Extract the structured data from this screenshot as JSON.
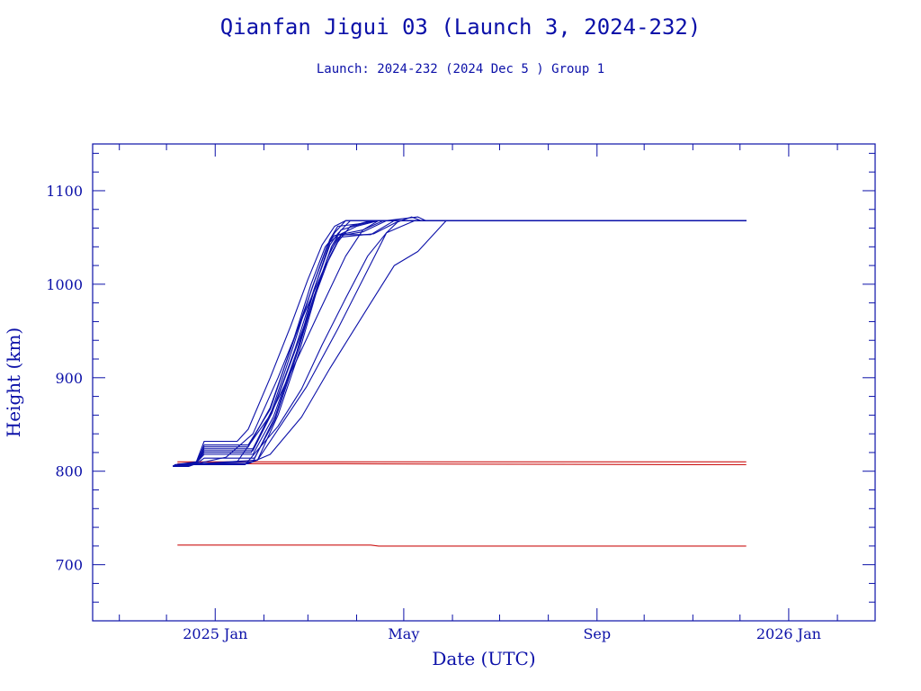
{
  "chart_data": {
    "type": "line",
    "title": "Qianfan Jigui 03 (Launch 3, 2024-232)",
    "subtitle": "Launch: 2024-232  (2024 Dec  5 )  Group 1",
    "xlabel": "Date (UTC)",
    "ylabel": "Height (km)",
    "xlim": [
      "2024-10-15",
      "2026-02-25"
    ],
    "ylim": [
      640,
      1150
    ],
    "y_ticks": [
      700,
      800,
      900,
      1000,
      1100
    ],
    "x_ticks": [
      {
        "date": "2025-01-01",
        "label": "2025 Jan"
      },
      {
        "date": "2025-05-01",
        "label": "May"
      },
      {
        "date": "2025-09-01",
        "label": "Sep"
      },
      {
        "date": "2026-01-01",
        "label": "2026 Jan"
      }
    ],
    "grid": false,
    "legend": "none",
    "colors": {
      "axis": "#0b10a8",
      "raising": "#0b10a8",
      "stable": "#cc1414"
    },
    "series": [
      {
        "color": "#cc1414",
        "points": [
          [
            "2024-12-08",
            721
          ],
          [
            "2025-04-10",
            721
          ],
          [
            "2025-04-15",
            720
          ],
          [
            "2025-12-05",
            720
          ]
        ]
      },
      {
        "color": "#cc1414",
        "points": [
          [
            "2024-12-08",
            810
          ],
          [
            "2025-04-01",
            810
          ],
          [
            "2025-12-05",
            810
          ]
        ]
      },
      {
        "color": "#cc1414",
        "points": [
          [
            "2024-12-08",
            808
          ],
          [
            "2025-03-10",
            808
          ],
          [
            "2025-11-20",
            807
          ],
          [
            "2025-12-05",
            807
          ]
        ]
      },
      {
        "color": "#0b10a8",
        "points": [
          [
            "2024-12-05",
            806
          ],
          [
            "2024-12-15",
            806
          ],
          [
            "2024-12-20",
            808
          ],
          [
            "2025-01-20",
            808
          ],
          [
            "2025-01-28",
            812
          ],
          [
            "2025-02-28",
            890
          ],
          [
            "2025-03-20",
            952
          ],
          [
            "2025-04-20",
            1055
          ],
          [
            "2025-05-08",
            1068
          ],
          [
            "2025-12-05",
            1068
          ]
        ]
      },
      {
        "color": "#0b10a8",
        "points": [
          [
            "2024-12-05",
            805
          ],
          [
            "2024-12-15",
            805
          ],
          [
            "2024-12-20",
            808
          ],
          [
            "2025-01-22",
            808
          ],
          [
            "2025-02-05",
            818
          ],
          [
            "2025-02-25",
            858
          ],
          [
            "2025-03-15",
            910
          ],
          [
            "2025-04-10",
            980
          ],
          [
            "2025-04-25",
            1020
          ],
          [
            "2025-05-10",
            1035
          ],
          [
            "2025-05-28",
            1068
          ],
          [
            "2025-12-05",
            1068
          ]
        ]
      },
      {
        "color": "#0b10a8",
        "points": [
          [
            "2024-12-06",
            806
          ],
          [
            "2024-12-18",
            807
          ],
          [
            "2025-01-20",
            807
          ],
          [
            "2025-02-10",
            848
          ],
          [
            "2025-02-25",
            888
          ],
          [
            "2025-03-10",
            935
          ],
          [
            "2025-03-25",
            985
          ],
          [
            "2025-04-08",
            1030
          ],
          [
            "2025-04-20",
            1055
          ],
          [
            "2025-04-28",
            1068
          ],
          [
            "2025-12-05",
            1068
          ]
        ]
      },
      {
        "color": "#0b10a8",
        "points": [
          [
            "2024-12-06",
            807
          ],
          [
            "2024-12-18",
            807
          ],
          [
            "2025-01-15",
            810
          ],
          [
            "2025-02-05",
            860
          ],
          [
            "2025-02-20",
            912
          ],
          [
            "2025-03-08",
            970
          ],
          [
            "2025-03-25",
            1030
          ],
          [
            "2025-04-05",
            1058
          ],
          [
            "2025-04-15",
            1068
          ],
          [
            "2025-12-05",
            1068
          ]
        ]
      },
      {
        "color": "#0b10a8",
        "points": [
          [
            "2024-12-07",
            806
          ],
          [
            "2024-12-20",
            808
          ],
          [
            "2025-01-08",
            815
          ],
          [
            "2025-01-25",
            840
          ],
          [
            "2025-02-10",
            900
          ],
          [
            "2025-02-25",
            962
          ],
          [
            "2025-03-10",
            1012
          ],
          [
            "2025-03-20",
            1045
          ],
          [
            "2025-03-28",
            1062
          ],
          [
            "2025-04-10",
            1068
          ],
          [
            "2025-12-05",
            1068
          ]
        ]
      },
      {
        "color": "#0b10a8",
        "points": [
          [
            "2024-12-06",
            807
          ],
          [
            "2024-12-20",
            810
          ],
          [
            "2024-12-25",
            832
          ],
          [
            "2025-01-15",
            832
          ],
          [
            "2025-01-22",
            845
          ],
          [
            "2025-02-05",
            900
          ],
          [
            "2025-02-18",
            955
          ],
          [
            "2025-03-01",
            1005
          ],
          [
            "2025-03-10",
            1042
          ],
          [
            "2025-03-18",
            1062
          ],
          [
            "2025-03-25",
            1068
          ],
          [
            "2025-12-05",
            1068
          ]
        ]
      },
      {
        "color": "#0b10a8",
        "points": [
          [
            "2024-12-06",
            806
          ],
          [
            "2024-12-20",
            810
          ],
          [
            "2024-12-25",
            826
          ],
          [
            "2025-01-22",
            826
          ],
          [
            "2025-02-05",
            868
          ],
          [
            "2025-02-20",
            940
          ],
          [
            "2025-03-05",
            1002
          ],
          [
            "2025-03-15",
            1048
          ],
          [
            "2025-03-20",
            1062
          ],
          [
            "2025-04-05",
            1065
          ],
          [
            "2025-04-15",
            1068
          ],
          [
            "2025-12-05",
            1068
          ]
        ]
      },
      {
        "color": "#0b10a8",
        "points": [
          [
            "2024-12-06",
            806
          ],
          [
            "2024-12-20",
            809
          ],
          [
            "2024-12-25",
            822
          ],
          [
            "2025-01-25",
            822
          ],
          [
            "2025-02-06",
            862
          ],
          [
            "2025-02-20",
            925
          ],
          [
            "2025-03-05",
            985
          ],
          [
            "2025-03-15",
            1030
          ],
          [
            "2025-03-22",
            1052
          ],
          [
            "2025-04-05",
            1056
          ],
          [
            "2025-04-20",
            1068
          ],
          [
            "2025-05-10",
            1072
          ],
          [
            "2025-05-15",
            1068
          ],
          [
            "2025-12-05",
            1068
          ]
        ]
      },
      {
        "color": "#0b10a8",
        "points": [
          [
            "2024-12-06",
            806
          ],
          [
            "2024-12-20",
            809
          ],
          [
            "2024-12-25",
            818
          ],
          [
            "2025-01-25",
            818
          ],
          [
            "2025-02-07",
            858
          ],
          [
            "2025-02-22",
            928
          ],
          [
            "2025-03-05",
            988
          ],
          [
            "2025-03-15",
            1035
          ],
          [
            "2025-03-22",
            1053
          ],
          [
            "2025-04-10",
            1053
          ],
          [
            "2025-04-25",
            1068
          ],
          [
            "2025-12-05",
            1068
          ]
        ]
      },
      {
        "color": "#0b10a8",
        "points": [
          [
            "2024-12-06",
            806
          ],
          [
            "2024-12-20",
            808
          ],
          [
            "2024-12-25",
            814
          ],
          [
            "2025-01-26",
            814
          ],
          [
            "2025-02-08",
            855
          ],
          [
            "2025-02-22",
            925
          ],
          [
            "2025-03-06",
            992
          ],
          [
            "2025-03-14",
            1030
          ],
          [
            "2025-03-20",
            1050
          ],
          [
            "2025-04-12",
            1054
          ],
          [
            "2025-04-26",
            1066
          ],
          [
            "2025-05-06",
            1072
          ],
          [
            "2025-05-12",
            1068
          ],
          [
            "2025-12-05",
            1068
          ]
        ]
      },
      {
        "color": "#0b10a8",
        "points": [
          [
            "2024-12-06",
            805
          ],
          [
            "2024-12-20",
            808
          ],
          [
            "2025-01-28",
            812
          ],
          [
            "2025-02-10",
            860
          ],
          [
            "2025-02-23",
            925
          ],
          [
            "2025-03-07",
            995
          ],
          [
            "2025-03-16",
            1040
          ],
          [
            "2025-03-22",
            1058
          ],
          [
            "2025-03-30",
            1062
          ],
          [
            "2025-04-12",
            1068
          ],
          [
            "2025-12-05",
            1068
          ]
        ]
      },
      {
        "color": "#0b10a8",
        "points": [
          [
            "2024-12-06",
            806
          ],
          [
            "2024-12-20",
            809
          ],
          [
            "2024-12-25",
            820
          ],
          [
            "2025-01-24",
            820
          ],
          [
            "2025-02-06",
            865
          ],
          [
            "2025-02-20",
            935
          ],
          [
            "2025-03-04",
            998
          ],
          [
            "2025-03-13",
            1040
          ],
          [
            "2025-03-18",
            1055
          ],
          [
            "2025-03-25",
            1068
          ],
          [
            "2025-12-05",
            1068
          ]
        ]
      },
      {
        "color": "#0b10a8",
        "points": [
          [
            "2024-12-06",
            806
          ],
          [
            "2024-12-20",
            808
          ],
          [
            "2024-12-25",
            824
          ],
          [
            "2025-01-25",
            824
          ],
          [
            "2025-02-06",
            862
          ],
          [
            "2025-02-21",
            932
          ],
          [
            "2025-03-05",
            995
          ],
          [
            "2025-03-15",
            1042
          ],
          [
            "2025-03-20",
            1054
          ],
          [
            "2025-03-28",
            1068
          ],
          [
            "2025-12-05",
            1068
          ]
        ]
      },
      {
        "color": "#0b10a8",
        "points": [
          [
            "2024-12-06",
            806
          ],
          [
            "2024-12-20",
            808
          ],
          [
            "2025-01-25",
            810
          ],
          [
            "2025-02-08",
            858
          ],
          [
            "2025-02-22",
            928
          ],
          [
            "2025-03-06",
            1000
          ],
          [
            "2025-03-15",
            1045
          ],
          [
            "2025-03-20",
            1052
          ],
          [
            "2025-04-01",
            1062
          ],
          [
            "2025-04-15",
            1068
          ],
          [
            "2025-12-05",
            1068
          ]
        ]
      },
      {
        "color": "#0b10a8",
        "points": [
          [
            "2024-12-06",
            806
          ],
          [
            "2024-12-20",
            808
          ],
          [
            "2024-12-25",
            828
          ],
          [
            "2025-01-22",
            828
          ],
          [
            "2025-02-05",
            866
          ],
          [
            "2025-02-19",
            936
          ],
          [
            "2025-03-03",
            1000
          ],
          [
            "2025-03-12",
            1040
          ],
          [
            "2025-03-18",
            1052
          ],
          [
            "2025-04-05",
            1058
          ],
          [
            "2025-04-18",
            1068
          ],
          [
            "2025-12-05",
            1068
          ]
        ]
      }
    ]
  }
}
